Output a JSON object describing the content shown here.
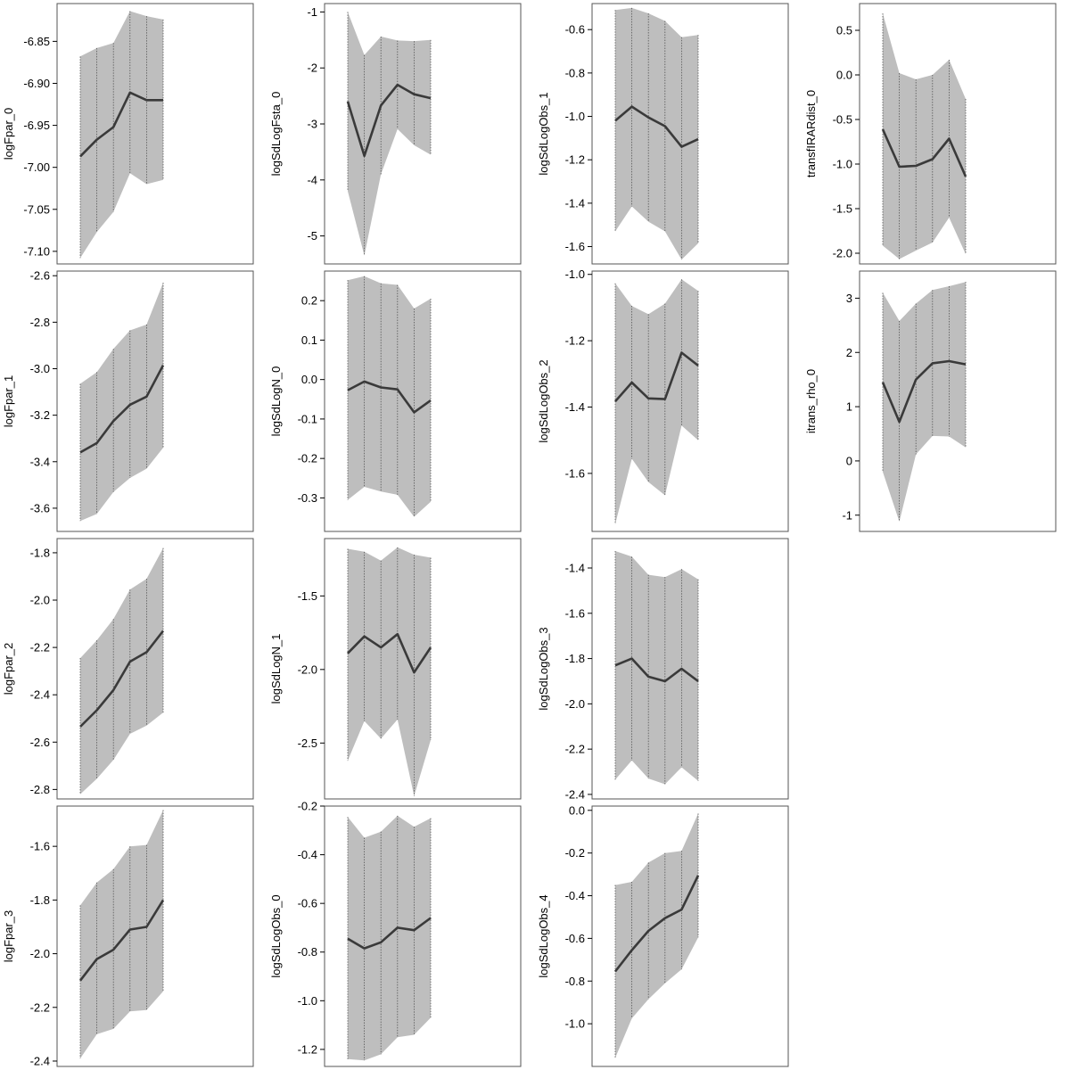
{
  "chart_data": [
    {
      "type": "area",
      "ylabel": "logFpar_0",
      "yticks": [
        -7.1,
        -7.05,
        -7.0,
        -6.95,
        -6.9,
        -6.85
      ],
      "tick_labels": [
        "-7.10",
        "-7.05",
        "-7.00",
        "-6.95",
        "-6.90",
        "-6.85"
      ],
      "ylim": [
        -7.115,
        -6.805
      ],
      "mean": [
        -6.987,
        -6.967,
        -6.952,
        -6.911,
        -6.92,
        -6.92
      ],
      "lower": [
        -7.108,
        -7.077,
        -7.053,
        -7.007,
        -7.02,
        -7.015
      ],
      "upper": [
        -6.868,
        -6.858,
        -6.852,
        -6.814,
        -6.82,
        -6.824
      ]
    },
    {
      "type": "area",
      "ylabel": "logSdLogFsta_0",
      "yticks": [
        -5,
        -4,
        -3,
        -2,
        -1
      ],
      "tick_labels": [
        "-5",
        "-4",
        "-3",
        "-2",
        "-1"
      ],
      "ylim": [
        -5.5,
        -0.85
      ],
      "mean": [
        -2.6,
        -3.57,
        -2.67,
        -2.3,
        -2.47,
        -2.54
      ],
      "lower": [
        -4.2,
        -5.35,
        -3.9,
        -3.09,
        -3.38,
        -3.55
      ],
      "upper": [
        -1.0,
        -1.77,
        -1.44,
        -1.51,
        -1.52,
        -1.5
      ]
    },
    {
      "type": "area",
      "ylabel": "logSdLogObs_1",
      "yticks": [
        -1.6,
        -1.4,
        -1.2,
        -1.0,
        -0.8,
        -0.6
      ],
      "tick_labels": [
        "-1.6",
        "-1.4",
        "-1.2",
        "-1.0",
        "-0.8",
        "-0.6"
      ],
      "ylim": [
        -1.68,
        -0.48
      ],
      "mean": [
        -1.02,
        -0.955,
        -1.005,
        -1.045,
        -1.14,
        -1.105
      ],
      "lower": [
        -1.53,
        -1.415,
        -1.485,
        -1.53,
        -1.66,
        -1.585
      ],
      "upper": [
        -0.51,
        -0.5,
        -0.525,
        -0.56,
        -0.635,
        -0.625
      ]
    },
    {
      "type": "area",
      "ylabel": "transfIRARdist_0",
      "yticks": [
        -2.0,
        -1.5,
        -1.0,
        -0.5,
        0.0,
        0.5
      ],
      "tick_labels": [
        "-2.0",
        "-1.5",
        "-1.0",
        "-0.5",
        "0.0",
        "0.5"
      ],
      "ylim": [
        -2.12,
        0.8
      ],
      "mean": [
        -0.61,
        -1.03,
        -1.02,
        -0.945,
        -0.715,
        -1.14
      ],
      "lower": [
        -1.915,
        -2.065,
        -1.97,
        -1.88,
        -1.6,
        -2.01
      ],
      "upper": [
        0.69,
        0.02,
        -0.05,
        0.0,
        0.17,
        -0.27
      ]
    },
    {
      "type": "area",
      "ylabel": "logFpar_1",
      "yticks": [
        -3.6,
        -3.4,
        -3.2,
        -3.0,
        -2.8,
        -2.6
      ],
      "tick_labels": [
        "-3.6",
        "-3.4",
        "-3.2",
        "-3.0",
        "-2.8",
        "-2.6"
      ],
      "ylim": [
        -3.7,
        -2.58
      ],
      "mean": [
        -3.36,
        -3.32,
        -3.225,
        -3.155,
        -3.12,
        -2.985
      ],
      "lower": [
        -3.655,
        -3.625,
        -3.53,
        -3.47,
        -3.43,
        -3.34
      ],
      "upper": [
        -3.065,
        -3.015,
        -2.915,
        -2.835,
        -2.81,
        -2.63
      ]
    },
    {
      "type": "area",
      "ylabel": "logSdLogN_0",
      "yticks": [
        -0.3,
        -0.2,
        -0.1,
        0.0,
        0.1,
        0.2
      ],
      "tick_labels": [
        "-0.3",
        "-0.2",
        "-0.1",
        "0.0",
        "0.1",
        "0.2"
      ],
      "ylim": [
        -0.385,
        0.275
      ],
      "mean": [
        -0.027,
        -0.005,
        -0.02,
        -0.025,
        -0.083,
        -0.053
      ],
      "lower": [
        -0.305,
        -0.272,
        -0.284,
        -0.292,
        -0.348,
        -0.31
      ],
      "upper": [
        0.252,
        0.262,
        0.244,
        0.24,
        0.18,
        0.205
      ]
    },
    {
      "type": "area",
      "ylabel": "logSdLogObs_2",
      "yticks": [
        -1.6,
        -1.4,
        -1.2,
        -1.0
      ],
      "tick_labels": [
        "-1.6",
        "-1.4",
        "-1.2",
        "-1.0"
      ],
      "ylim": [
        -1.775,
        -0.99
      ],
      "mean": [
        -1.383,
        -1.326,
        -1.374,
        -1.376,
        -1.236,
        -1.275
      ],
      "lower": [
        -1.753,
        -1.556,
        -1.626,
        -1.666,
        -1.456,
        -1.5
      ],
      "upper": [
        -1.027,
        -1.095,
        -1.12,
        -1.088,
        -1.015,
        -1.05
      ]
    },
    {
      "type": "area",
      "ylabel": "itrans_rho_0",
      "yticks": [
        -1,
        0,
        1,
        2,
        3
      ],
      "tick_labels": [
        "-1",
        "0",
        "1",
        "2",
        "3"
      ],
      "ylim": [
        -1.3,
        3.5
      ],
      "mean": [
        1.45,
        0.72,
        1.5,
        1.8,
        1.84,
        1.78
      ],
      "lower": [
        -0.2,
        -1.12,
        0.12,
        0.46,
        0.45,
        0.25
      ],
      "upper": [
        3.1,
        2.58,
        2.9,
        3.15,
        3.22,
        3.3
      ]
    },
    {
      "type": "area",
      "ylabel": "logFpar_2",
      "yticks": [
        -2.8,
        -2.6,
        -2.4,
        -2.2,
        -2.0,
        -1.8
      ],
      "tick_labels": [
        "-2.8",
        "-2.6",
        "-2.4",
        "-2.2",
        "-2.0",
        "-1.8"
      ],
      "ylim": [
        -2.84,
        -1.74
      ],
      "mean": [
        -2.535,
        -2.465,
        -2.38,
        -2.26,
        -2.22,
        -2.13
      ],
      "lower": [
        -2.82,
        -2.755,
        -2.675,
        -2.565,
        -2.53,
        -2.475
      ],
      "upper": [
        -2.245,
        -2.17,
        -2.08,
        -1.955,
        -1.91,
        -1.78
      ]
    },
    {
      "type": "area",
      "ylabel": "logSdLogN_1",
      "yticks": [
        -2.5,
        -2.0,
        -1.5
      ],
      "tick_labels": [
        "-2.5",
        "-2.0",
        "-1.5"
      ],
      "ylim": [
        -2.88,
        -1.11
      ],
      "mean": [
        -1.89,
        -1.775,
        -1.85,
        -1.76,
        -2.02,
        -1.85
      ],
      "lower": [
        -2.62,
        -2.35,
        -2.47,
        -2.34,
        -2.86,
        -2.48
      ],
      "upper": [
        -1.18,
        -1.2,
        -1.26,
        -1.17,
        -1.22,
        -1.24
      ]
    },
    {
      "type": "area",
      "ylabel": "logSdLogObs_3",
      "yticks": [
        -2.4,
        -2.2,
        -2.0,
        -1.8,
        -1.6,
        -1.4
      ],
      "tick_labels": [
        "-2.4",
        "-2.2",
        "-2.0",
        "-1.8",
        "-1.6",
        "-1.4"
      ],
      "ylim": [
        -2.42,
        -1.27
      ],
      "mean": [
        -1.83,
        -1.8,
        -1.88,
        -1.9,
        -1.845,
        -1.9
      ],
      "lower": [
        -2.335,
        -2.25,
        -2.33,
        -2.355,
        -2.28,
        -2.34
      ],
      "upper": [
        -1.325,
        -1.35,
        -1.43,
        -1.44,
        -1.405,
        -1.45
      ]
    },
    {
      "type": "area",
      "ylabel": "logFpar_3",
      "yticks": [
        -2.4,
        -2.2,
        -2.0,
        -1.8,
        -1.6
      ],
      "tick_labels": [
        "-2.4",
        "-2.2",
        "-2.0",
        "-1.8",
        "-1.6"
      ],
      "ylim": [
        -2.42,
        -1.45
      ],
      "mean": [
        -2.1,
        -2.02,
        -1.985,
        -1.91,
        -1.9,
        -1.8
      ],
      "lower": [
        -2.39,
        -2.3,
        -2.28,
        -2.215,
        -2.21,
        -2.14
      ],
      "upper": [
        -1.82,
        -1.735,
        -1.685,
        -1.6,
        -1.595,
        -1.465
      ]
    },
    {
      "type": "area",
      "ylabel": "logSdLogObs_0",
      "yticks": [
        -1.2,
        -1.0,
        -0.8,
        -0.6,
        -0.4,
        -0.2
      ],
      "tick_labels": [
        "-1.2",
        "-1.0",
        "-0.8",
        "-0.6",
        "-0.4",
        "-0.2"
      ],
      "ylim": [
        -1.27,
        -0.2
      ],
      "mean": [
        -0.745,
        -0.785,
        -0.76,
        -0.7,
        -0.71,
        -0.66
      ],
      "lower": [
        -1.24,
        -1.245,
        -1.22,
        -1.15,
        -1.14,
        -1.07
      ],
      "upper": [
        -0.245,
        -0.33,
        -0.305,
        -0.24,
        -0.285,
        -0.25
      ]
    },
    {
      "type": "area",
      "ylabel": "logSdLogObs_4",
      "yticks": [
        -1.0,
        -0.8,
        -0.6,
        -0.4,
        -0.2,
        0.0
      ],
      "tick_labels": [
        "-1.0",
        "-0.8",
        "-0.6",
        "-0.4",
        "-0.2",
        "0.0"
      ],
      "ylim": [
        -1.2,
        0.02
      ],
      "mean": [
        -0.755,
        -0.655,
        -0.565,
        -0.505,
        -0.465,
        -0.305
      ],
      "lower": [
        -1.16,
        -0.975,
        -0.885,
        -0.81,
        -0.745,
        -0.595
      ],
      "upper": [
        -0.35,
        -0.335,
        -0.245,
        -0.2,
        -0.19,
        -0.015
      ]
    }
  ],
  "colors": {
    "band": "#bebebe",
    "mean_line": "#3a3a3a",
    "vertical_guides": "#555555",
    "frame": "#555555"
  }
}
